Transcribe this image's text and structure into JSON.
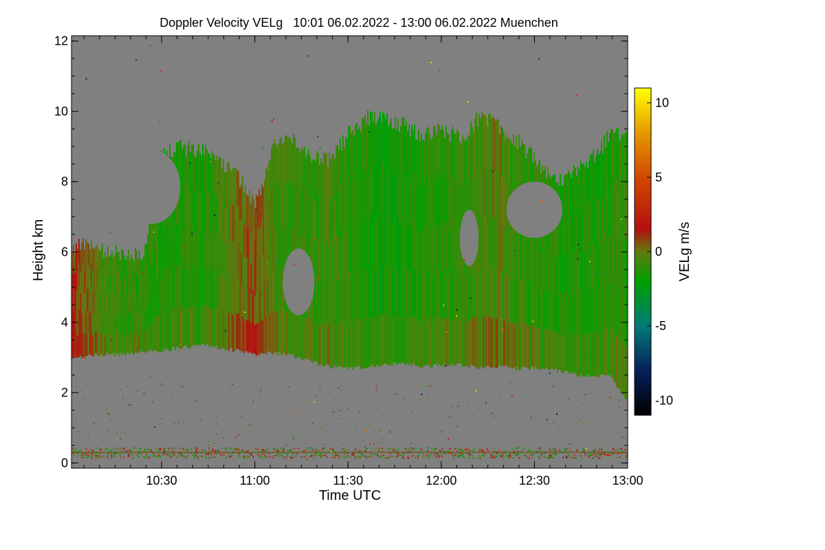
{
  "chart_data": {
    "type": "heatmap",
    "title": "Doppler Velocity VELg   10:01 06.02.2022 - 13:00 06.02.2022 Muenchen",
    "xlabel": "Time UTC",
    "ylabel": "Height km",
    "colorbar_label": "VELg m/s",
    "x_range_hours": [
      10.0167,
      13.0
    ],
    "y_range_km": [
      -0.15,
      12.15
    ],
    "x_ticks": [
      {
        "value": 10.5,
        "label": "10:30"
      },
      {
        "value": 11.0,
        "label": "11:00"
      },
      {
        "value": 11.5,
        "label": "11:30"
      },
      {
        "value": 12.0,
        "label": "12:00"
      },
      {
        "value": 12.5,
        "label": "12:30"
      },
      {
        "value": 13.0,
        "label": "13:00"
      }
    ],
    "y_ticks": [
      {
        "value": 0,
        "label": "0"
      },
      {
        "value": 2,
        "label": "2"
      },
      {
        "value": 4,
        "label": "4"
      },
      {
        "value": 6,
        "label": "6"
      },
      {
        "value": 8,
        "label": "8"
      },
      {
        "value": 10,
        "label": "10"
      },
      {
        "value": 12,
        "label": "12"
      }
    ],
    "colorbar": {
      "range": [
        -11,
        11
      ],
      "ticks": [
        {
          "value": 10,
          "label": "10"
        },
        {
          "value": 5,
          "label": "5"
        },
        {
          "value": 0,
          "label": "0"
        },
        {
          "value": -5,
          "label": "-5"
        },
        {
          "value": -10,
          "label": "-10"
        }
      ],
      "stops": [
        {
          "value": -11,
          "color": "#000000"
        },
        {
          "value": -8,
          "color": "#06205a"
        },
        {
          "value": -5,
          "color": "#007a78"
        },
        {
          "value": -2,
          "color": "#00a000"
        },
        {
          "value": 0,
          "color": "#607a10"
        },
        {
          "value": 1.5,
          "color": "#b21010"
        },
        {
          "value": 5,
          "color": "#d24800"
        },
        {
          "value": 8,
          "color": "#e59a00"
        },
        {
          "value": 11,
          "color": "#ffff00"
        }
      ]
    },
    "background_color": "#808080",
    "cloud_layer": {
      "description_values_km": "approximate cloud base and top heights vs time (hours UTC)",
      "time": [
        10.02,
        10.1,
        10.2,
        10.3,
        10.4,
        10.5,
        10.6,
        10.7,
        10.8,
        10.9,
        11.0,
        11.1,
        11.2,
        11.3,
        11.4,
        11.5,
        11.6,
        11.7,
        11.8,
        11.9,
        12.0,
        12.1,
        12.2,
        12.3,
        12.4,
        12.5,
        12.6,
        12.7,
        12.8,
        12.9,
        13.0
      ],
      "base_km": [
        3.0,
        3.05,
        3.1,
        3.1,
        3.2,
        3.2,
        3.3,
        3.35,
        3.3,
        3.2,
        3.1,
        3.15,
        3.05,
        2.9,
        2.75,
        2.7,
        2.75,
        2.8,
        2.85,
        2.75,
        2.8,
        2.8,
        2.7,
        2.75,
        2.7,
        2.7,
        2.65,
        2.55,
        2.45,
        2.5,
        1.7
      ],
      "top_km": [
        6.1,
        6.2,
        6.0,
        5.9,
        6.0,
        8.8,
        9.0,
        8.9,
        8.7,
        8.2,
        7.4,
        9.0,
        9.3,
        8.8,
        8.6,
        9.4,
        9.8,
        9.8,
        9.6,
        9.3,
        9.5,
        9.2,
        9.8,
        9.6,
        9.2,
        8.6,
        8.0,
        8.2,
        8.6,
        9.3,
        9.4
      ],
      "mean_velocity_ms": [
        1.0,
        0.3,
        -0.8,
        -1.2,
        -1.0,
        -1.5,
        -1.3,
        -1.6,
        -0.8,
        0.2,
        0.5,
        -0.5,
        -1.2,
        -1.0,
        -0.7,
        -1.3,
        -1.5,
        -1.8,
        -1.6,
        -1.4,
        -1.2,
        -1.0,
        -0.6,
        -0.2,
        -0.9,
        -1.2,
        -1.4,
        -1.6,
        -1.5,
        -1.3,
        -1.0
      ]
    },
    "clear_regions_km": [
      {
        "t0": 10.3,
        "t1": 10.6,
        "h0": 6.8,
        "h1": 8.9
      },
      {
        "t0": 11.15,
        "t1": 11.32,
        "h0": 4.2,
        "h1": 6.1
      },
      {
        "t0": 12.1,
        "t1": 12.2,
        "h0": 5.6,
        "h1": 7.2
      },
      {
        "t0": 12.35,
        "t1": 12.65,
        "h0": 6.4,
        "h1": 8.0
      }
    ],
    "surface_noise_band_km": [
      0.15,
      0.45
    ]
  }
}
